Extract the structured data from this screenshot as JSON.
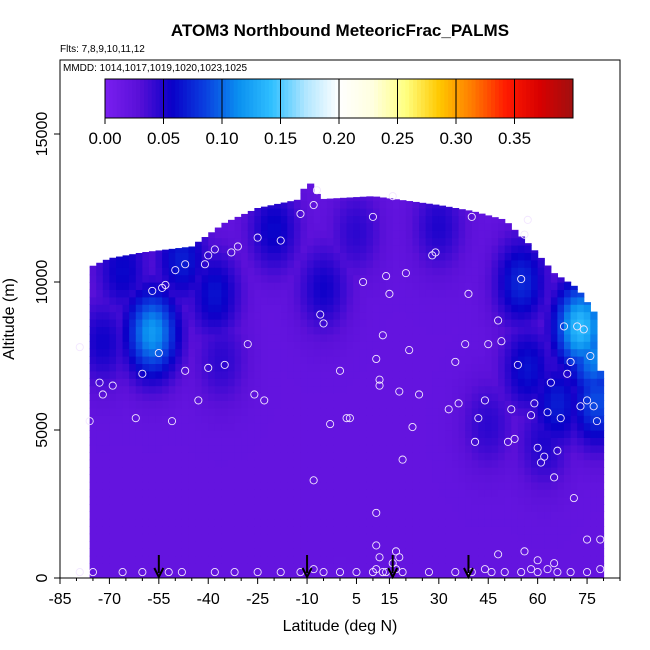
{
  "chart_data": {
    "type": "heatmap",
    "title": "ATOM3 Northbound MeteoricFrac_PALMS",
    "flights_label": "Flts: 7,8,9,10,11,12",
    "dates_label": "MMDD: 1014,1017,1019,1020,1023,1025",
    "xlabel": "Latitude (deg N)",
    "ylabel": "Altitude (m)",
    "xlim": [
      -85,
      85
    ],
    "ylim": [
      0,
      17500
    ],
    "x_ticks": [
      -85,
      -70,
      -55,
      -40,
      -25,
      -10,
      5,
      15,
      30,
      45,
      60,
      75
    ],
    "y_ticks": [
      0,
      5000,
      10000,
      15000
    ],
    "colorbar": {
      "ticks": [
        "0.00",
        "0.05",
        "0.10",
        "0.15",
        "0.20",
        "0.25",
        "0.30",
        "0.35"
      ],
      "range": [
        0,
        0.4
      ],
      "colors": [
        "#7a1ff0",
        "#5a10d8",
        "#0a00c8",
        "#0a40e0",
        "#0a90f0",
        "#30c0ff",
        "#b0e6ff",
        "#ffffff",
        "#ffffe0",
        "#ffff80",
        "#ffc800",
        "#ff7a00",
        "#ff1a00",
        "#d80000",
        "#a01010"
      ]
    },
    "field": {
      "background_value": 0.02,
      "features": [
        {
          "lat": -66,
          "alt": 10400,
          "value": 0.06
        },
        {
          "lat": -48,
          "alt": 10800,
          "value": 0.07
        },
        {
          "lat": -38,
          "alt": 9600,
          "value": 0.065
        },
        {
          "lat": -57,
          "alt": 8300,
          "value": 0.12
        },
        {
          "lat": -72,
          "alt": 8000,
          "value": 0.055
        },
        {
          "lat": -36,
          "alt": 7400,
          "value": 0.045
        },
        {
          "lat": -20,
          "alt": 11800,
          "value": 0.06
        },
        {
          "lat": -5,
          "alt": 9800,
          "value": 0.055
        },
        {
          "lat": 5,
          "alt": 11700,
          "value": 0.045
        },
        {
          "lat": 30,
          "alt": 11900,
          "value": 0.05
        },
        {
          "lat": 55,
          "alt": 10000,
          "value": 0.075
        },
        {
          "lat": 57,
          "alt": 7100,
          "value": 0.065
        },
        {
          "lat": 66,
          "alt": 5900,
          "value": 0.07
        },
        {
          "lat": 73,
          "alt": 8500,
          "value": 0.14
        },
        {
          "lat": 77,
          "alt": 7500,
          "value": 0.11
        },
        {
          "lat": 78,
          "alt": 6000,
          "value": 0.09
        },
        {
          "lat": 45,
          "alt": 5200,
          "value": 0.045
        },
        {
          "lat": 62,
          "alt": 4600,
          "value": 0.05
        }
      ],
      "envelope": [
        {
          "lat": -76,
          "alt_top": 10500
        },
        {
          "lat": -70,
          "alt_top": 10800
        },
        {
          "lat": -60,
          "alt_top": 11000
        },
        {
          "lat": -45,
          "alt_top": 11200
        },
        {
          "lat": -35,
          "alt_top": 12000
        },
        {
          "lat": -25,
          "alt_top": 12500
        },
        {
          "lat": -12,
          "alt_top": 12800
        },
        {
          "lat": -10,
          "alt_top": 13500
        },
        {
          "lat": -6,
          "alt_top": 12800
        },
        {
          "lat": 10,
          "alt_top": 12900
        },
        {
          "lat": 30,
          "alt_top": 12600
        },
        {
          "lat": 40,
          "alt_top": 12400
        },
        {
          "lat": 50,
          "alt_top": 12100
        },
        {
          "lat": 58,
          "alt_top": 11200
        },
        {
          "lat": 65,
          "alt_top": 10300
        },
        {
          "lat": 72,
          "alt_top": 9800
        },
        {
          "lat": 77,
          "alt_top": 9000
        },
        {
          "lat": 79,
          "alt_top": 7000
        },
        {
          "lat": 80,
          "alt_top": 5300
        }
      ],
      "lat_range": [
        -76,
        80
      ]
    },
    "sample_points": [
      [
        -79,
        7800
      ],
      [
        -76,
        5300
      ],
      [
        -73,
        6600
      ],
      [
        -72,
        6200
      ],
      [
        -69,
        6500
      ],
      [
        -62,
        5400
      ],
      [
        -60,
        6900
      ],
      [
        -51,
        5300
      ],
      [
        -47,
        7000
      ],
      [
        -43,
        6000
      ],
      [
        -40,
        7100
      ],
      [
        -35,
        7200
      ],
      [
        -28,
        7900
      ],
      [
        -26,
        6200
      ],
      [
        -23,
        6000
      ],
      [
        -55,
        7600
      ],
      [
        -57,
        9700
      ],
      [
        -54,
        9800
      ],
      [
        -53,
        9900
      ],
      [
        -50,
        10400
      ],
      [
        -47,
        10600
      ],
      [
        -41,
        10600
      ],
      [
        -40,
        10900
      ],
      [
        -38,
        11100
      ],
      [
        -33,
        11000
      ],
      [
        -31,
        11200
      ],
      [
        -25,
        11500
      ],
      [
        -18,
        11400
      ],
      [
        -12,
        12300
      ],
      [
        -8,
        12600
      ],
      [
        -7,
        13100
      ],
      [
        -6,
        8900
      ],
      [
        -5,
        8600
      ],
      [
        -3,
        5200
      ],
      [
        -8,
        3300
      ],
      [
        0,
        7000
      ],
      [
        2,
        5400
      ],
      [
        3,
        5400
      ],
      [
        7,
        10000
      ],
      [
        10,
        12200
      ],
      [
        11,
        7400
      ],
      [
        12,
        6700
      ],
      [
        12,
        6500
      ],
      [
        13,
        8200
      ],
      [
        14,
        10200
      ],
      [
        15,
        9600
      ],
      [
        16,
        12900
      ],
      [
        18,
        6300
      ],
      [
        19,
        4000
      ],
      [
        20,
        10300
      ],
      [
        21,
        7700
      ],
      [
        22,
        5100
      ],
      [
        24,
        6200
      ],
      [
        28,
        10900
      ],
      [
        29,
        11000
      ],
      [
        33,
        5700
      ],
      [
        35,
        7300
      ],
      [
        36,
        5900
      ],
      [
        38,
        7900
      ],
      [
        39,
        9600
      ],
      [
        40,
        12200
      ],
      [
        41,
        4600
      ],
      [
        42,
        5400
      ],
      [
        44,
        6000
      ],
      [
        45,
        7900
      ],
      [
        48,
        8700
      ],
      [
        49,
        8000
      ],
      [
        51,
        4600
      ],
      [
        52,
        5700
      ],
      [
        53,
        4700
      ],
      [
        54,
        7200
      ],
      [
        55,
        10100
      ],
      [
        56,
        11600
      ],
      [
        57,
        12100
      ],
      [
        58,
        5500
      ],
      [
        59,
        5900
      ],
      [
        60,
        4400
      ],
      [
        61,
        3900
      ],
      [
        62,
        4100
      ],
      [
        63,
        5600
      ],
      [
        64,
        6600
      ],
      [
        65,
        3400
      ],
      [
        66,
        4300
      ],
      [
        67,
        5400
      ],
      [
        68,
        8500
      ],
      [
        69,
        6900
      ],
      [
        70,
        7300
      ],
      [
        71,
        2700
      ],
      [
        72,
        8500
      ],
      [
        73,
        5800
      ],
      [
        74,
        8400
      ],
      [
        75,
        6000
      ],
      [
        76,
        7500
      ],
      [
        77,
        5800
      ],
      [
        78,
        5300
      ],
      [
        79,
        1300
      ],
      [
        11,
        2200
      ],
      [
        11,
        1100
      ],
      [
        12,
        700
      ],
      [
        17,
        900
      ],
      [
        18,
        700
      ],
      [
        16,
        500
      ],
      [
        48,
        800
      ],
      [
        56,
        900
      ],
      [
        60,
        600
      ],
      [
        65,
        500
      ],
      [
        75,
        1300
      ],
      [
        -79,
        200
      ],
      [
        -75,
        200
      ],
      [
        -66,
        200
      ],
      [
        -60,
        200
      ],
      [
        -52,
        200
      ],
      [
        -48,
        200
      ],
      [
        -38,
        200
      ],
      [
        -32,
        200
      ],
      [
        -25,
        200
      ],
      [
        -18,
        200
      ],
      [
        -12,
        200
      ],
      [
        -5,
        200
      ],
      [
        0,
        200
      ],
      [
        5,
        200
      ],
      [
        10,
        200
      ],
      [
        14,
        200
      ],
      [
        19,
        200
      ],
      [
        27,
        200
      ],
      [
        35,
        200
      ],
      [
        40,
        200
      ],
      [
        46,
        200
      ],
      [
        50,
        200
      ],
      [
        55,
        200
      ],
      [
        60,
        200
      ],
      [
        66,
        200
      ],
      [
        70,
        200
      ],
      [
        75,
        200
      ],
      [
        79,
        300
      ],
      [
        11,
        300
      ],
      [
        13,
        200
      ],
      [
        17,
        300
      ],
      [
        -8,
        300
      ],
      [
        44,
        300
      ],
      [
        58,
        300
      ],
      [
        63,
        300
      ]
    ],
    "arrows_lat": [
      -55,
      -10,
      16,
      39
    ]
  }
}
